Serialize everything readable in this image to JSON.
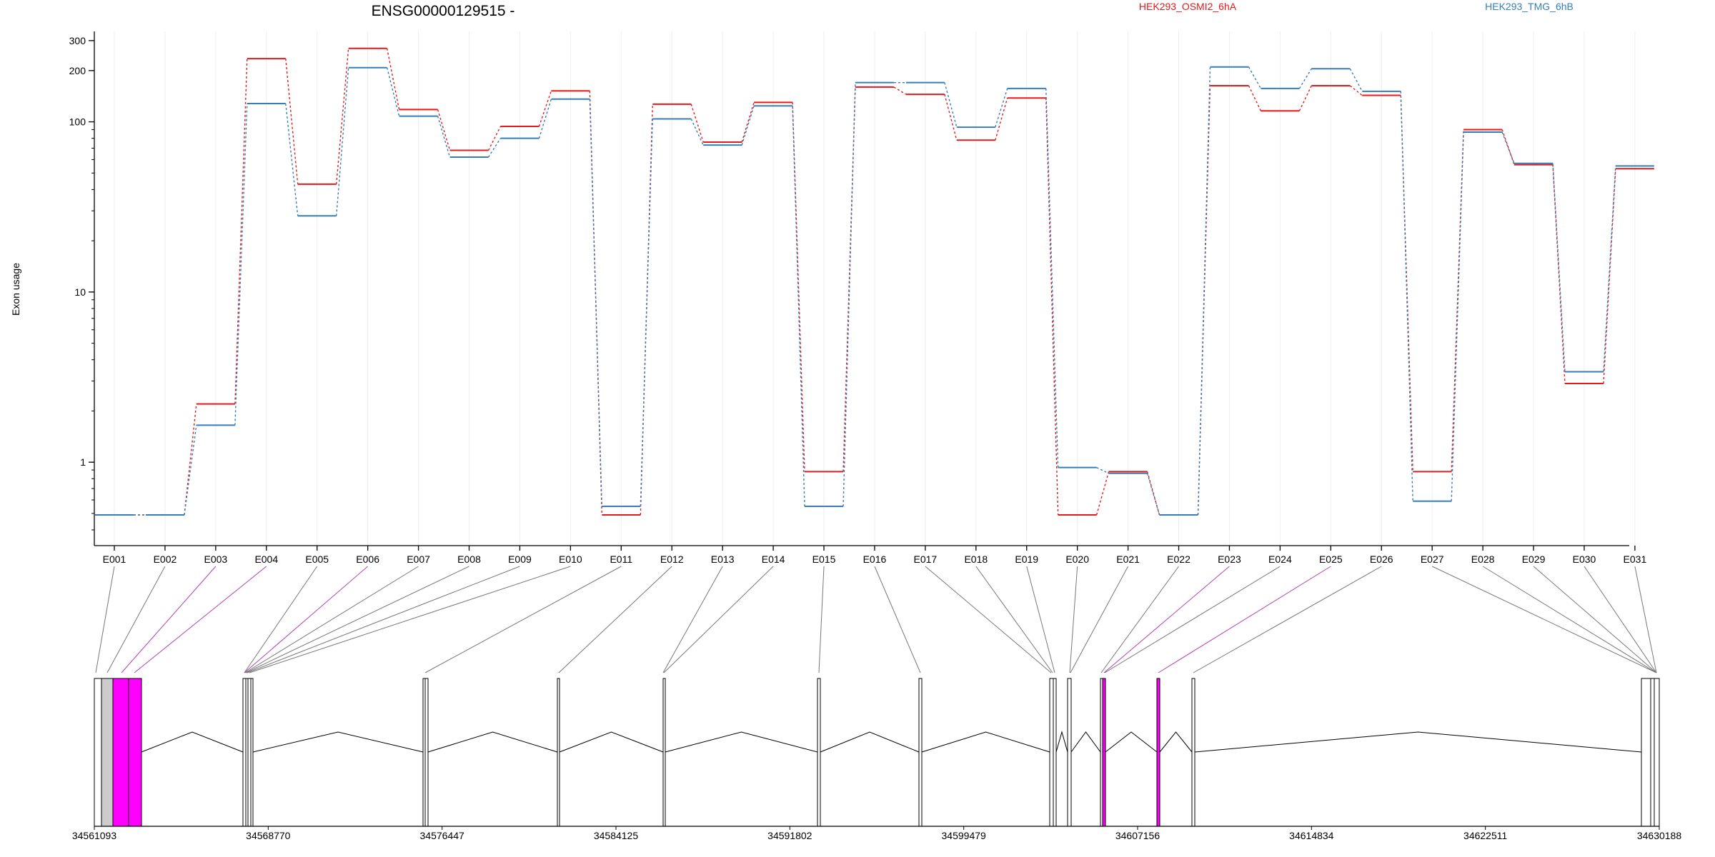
{
  "chart_data": {
    "type": "line",
    "title": "ENSG00000129515 -",
    "ylabel": "Exon usage",
    "xlabel": "",
    "y_scale": "log",
    "ylim": [
      0.4,
      330
    ],
    "y_ticks": [
      1,
      10,
      100,
      200,
      300
    ],
    "categories": [
      "E001",
      "E002",
      "E003",
      "E004",
      "E005",
      "E006",
      "E007",
      "E008",
      "E009",
      "E010",
      "E011",
      "E012",
      "E013",
      "E014",
      "E015",
      "E016",
      "E017",
      "E018",
      "E019",
      "E020",
      "E021",
      "E022",
      "E023",
      "E024",
      "E025",
      "E026",
      "E027",
      "E028",
      "E029",
      "E030",
      "E031"
    ],
    "series": [
      {
        "name": "HEK293_OSMI2_6hA",
        "color": "#e41a1c",
        "values": [
          0.49,
          0.49,
          2.2,
          235,
          43,
          270,
          118,
          68,
          94,
          152,
          0.49,
          127,
          76,
          130,
          0.88,
          160,
          145,
          78,
          138,
          0.49,
          0.88,
          0.49,
          163,
          116,
          163,
          143,
          0.88,
          90,
          56,
          2.9,
          53
        ]
      },
      {
        "name": "HEK293_TMG_6hB",
        "color": "#377eb8",
        "values": [
          0.49,
          0.49,
          1.65,
          128,
          28,
          208,
          108,
          62,
          80,
          136,
          0.55,
          104,
          73,
          124,
          0.55,
          170,
          170,
          93,
          157,
          0.93,
          0.86,
          0.49,
          210,
          157,
          205,
          151,
          0.59,
          87,
          57,
          3.4,
          55
        ]
      }
    ],
    "grid": "vertical",
    "legend_position": "top",
    "gene_model": {
      "coordinate_ticks": [
        "34561093",
        "34568770",
        "34576447",
        "34584125",
        "34591802",
        "34599479",
        "34607156",
        "34614834",
        "34622511",
        "34630188"
      ],
      "highlight_color": "#ff00ff",
      "highlighted_exons": [
        "E003",
        "E004",
        "E006",
        "E023",
        "E025"
      ]
    }
  }
}
